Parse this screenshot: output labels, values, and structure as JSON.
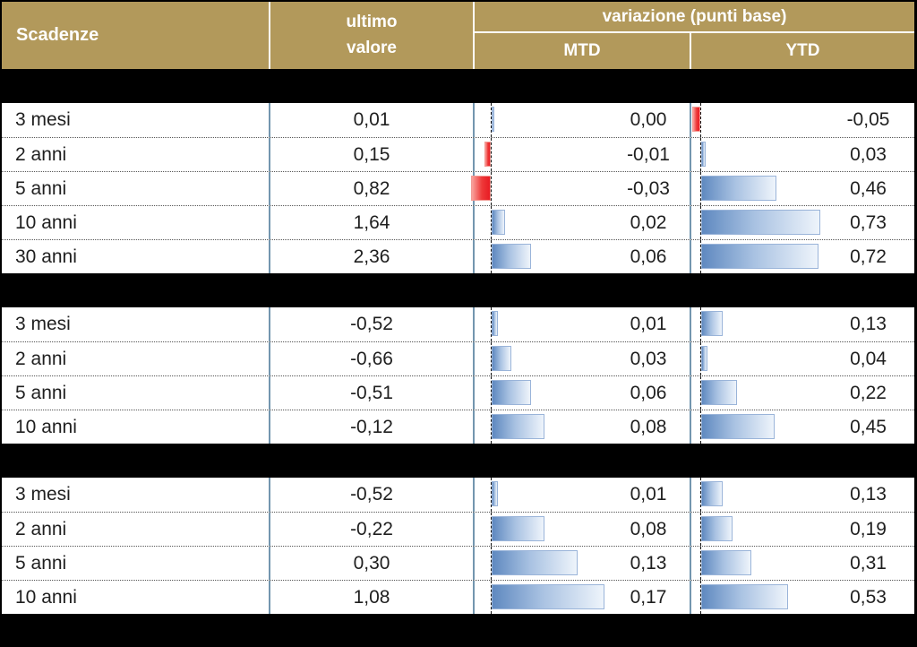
{
  "header": {
    "scadenze": "Scadenze",
    "ultimo_line1": "ultimo",
    "ultimo_line2": "valore",
    "variazione": "variazione (punti base)",
    "mtd": "MTD",
    "ytd": "YTD"
  },
  "colors": {
    "header_bg": "#B2995B",
    "header_text": "#FFFFFF",
    "section_divider": "#000000",
    "column_separator": "#7396AF",
    "row_separator_dotted": "#555555",
    "baseline_dashed": "#111111",
    "positive_bar_dark": "#5F89C0",
    "positive_bar_light": "#EEF4FB",
    "positive_bar_border": "#9AB4D9",
    "negative_bar": "#E81B23",
    "negative_bar_light": "#F9A39E",
    "body_text": "#1F1F1F"
  },
  "chart_data": {
    "type": "table",
    "title": "Scadenze — ultimo valore e variazione (punti base) MTD / YTD",
    "columns": [
      "Scadenze",
      "ultimo valore",
      "MTD",
      "YTD"
    ],
    "bar_columns": [
      "MTD",
      "YTD"
    ],
    "bar_style": "excel-style data bars: positive = blue gradient extending right from dashed baseline, negative = red gradient extending left; each column scaled to its own max absolute value",
    "number_format": "comma decimal, 2 decimals",
    "sections": [
      {
        "rows": [
          {
            "scadenza": "3 mesi",
            "ultimo_valore": 0.01,
            "mtd": 0.0,
            "ytd": -0.05
          },
          {
            "scadenza": "2 anni",
            "ultimo_valore": 0.15,
            "mtd": -0.01,
            "ytd": 0.03
          },
          {
            "scadenza": "5 anni",
            "ultimo_valore": 0.82,
            "mtd": -0.03,
            "ytd": 0.46
          },
          {
            "scadenza": "10 anni",
            "ultimo_valore": 1.64,
            "mtd": 0.02,
            "ytd": 0.73
          },
          {
            "scadenza": "30 anni",
            "ultimo_valore": 2.36,
            "mtd": 0.06,
            "ytd": 0.72
          }
        ]
      },
      {
        "rows": [
          {
            "scadenza": "3 mesi",
            "ultimo_valore": -0.52,
            "mtd": 0.01,
            "ytd": 0.13
          },
          {
            "scadenza": "2 anni",
            "ultimo_valore": -0.66,
            "mtd": 0.03,
            "ytd": 0.04
          },
          {
            "scadenza": "5 anni",
            "ultimo_valore": -0.51,
            "mtd": 0.06,
            "ytd": 0.22
          },
          {
            "scadenza": "10 anni",
            "ultimo_valore": -0.12,
            "mtd": 0.08,
            "ytd": 0.45
          }
        ]
      },
      {
        "rows": [
          {
            "scadenza": "3 mesi",
            "ultimo_valore": -0.52,
            "mtd": 0.01,
            "ytd": 0.13
          },
          {
            "scadenza": "2 anni",
            "ultimo_valore": -0.22,
            "mtd": 0.08,
            "ytd": 0.19
          },
          {
            "scadenza": "5 anni",
            "ultimo_valore": 0.3,
            "mtd": 0.13,
            "ytd": 0.31
          },
          {
            "scadenza": "10 anni",
            "ultimo_valore": 1.08,
            "mtd": 0.17,
            "ytd": 0.53
          }
        ]
      }
    ]
  }
}
